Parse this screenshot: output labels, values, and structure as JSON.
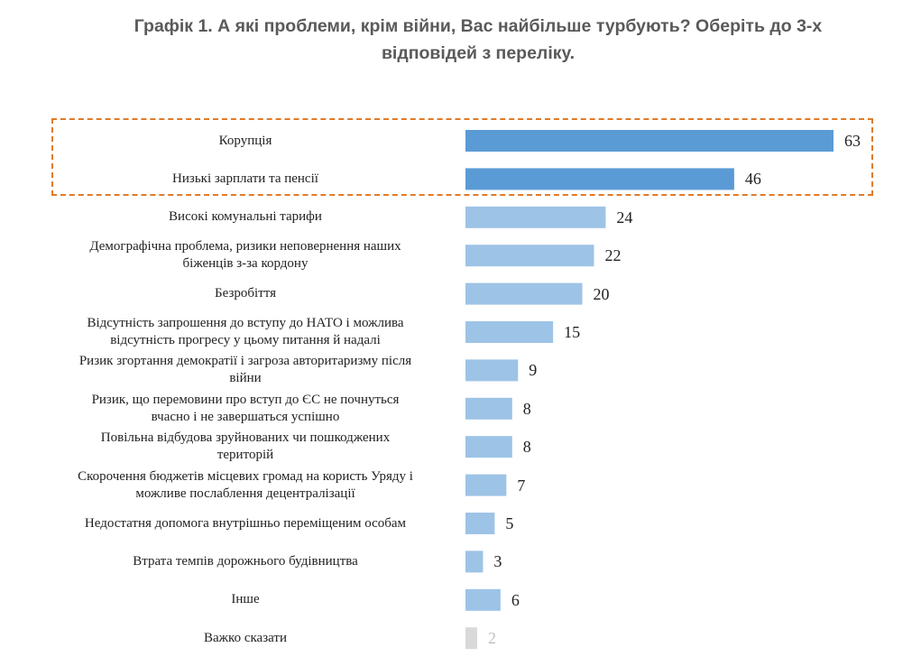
{
  "title_line1": "Графік 1. А які проблеми, крім війни, Вас найбільше турбують? Оберіть до 3-х",
  "title_line2": "відповідей з переліку.",
  "colors": {
    "highlight": "#5b9bd5",
    "normal": "#9dc3e6",
    "muted": "#d9d9d9",
    "muted_text": "#bfbfbf",
    "box": "#e07b2a"
  },
  "chart_data": {
    "type": "bar",
    "orientation": "horizontal",
    "title": "Графік 1. А які проблеми, крім війни, Вас найбільше турбують? Оберіть до 3-х відповідей з переліку.",
    "xlim": [
      0,
      63
    ],
    "categories": [
      [
        "Корупція"
      ],
      [
        "Низькі зарплати та пенсії"
      ],
      [
        "Високі комунальні тарифи"
      ],
      [
        "Демографічна проблема, ризики неповернення наших",
        "біженців з-за кордону"
      ],
      [
        "Безробіття"
      ],
      [
        "Відсутність запрошення до вступу до НАТО і можлива",
        "відсутність прогресу у цьому питання й надалі"
      ],
      [
        "Ризик  згортання демократії і загроза авторитаризму після",
        "війни"
      ],
      [
        "Ризик, що перемовини про вступ до ЄС не почнуться",
        "вчасно і не завершаться успішно"
      ],
      [
        "Повільна відбудова зруйнованих чи пошкоджених",
        "територій"
      ],
      [
        "Скорочення бюджетів місцевих громад на користь Уряду і",
        "можливе послаблення децентралізації"
      ],
      [
        "Недостатня допомога внутрішньо переміщеним особам"
      ],
      [
        "Втрата темпів дорожнього будівництва"
      ],
      [
        "Інше"
      ],
      [
        "Важко сказати"
      ]
    ],
    "values": [
      63,
      46,
      24,
      22,
      20,
      15,
      9,
      8,
      8,
      7,
      5,
      3,
      6,
      2
    ],
    "styles": [
      "highlight",
      "highlight",
      "normal",
      "normal",
      "normal",
      "normal",
      "normal",
      "normal",
      "normal",
      "normal",
      "normal",
      "normal",
      "normal",
      "muted"
    ],
    "highlighted_categories": [
      "Корупція",
      "Низькі зарплати та пенсії"
    ]
  }
}
